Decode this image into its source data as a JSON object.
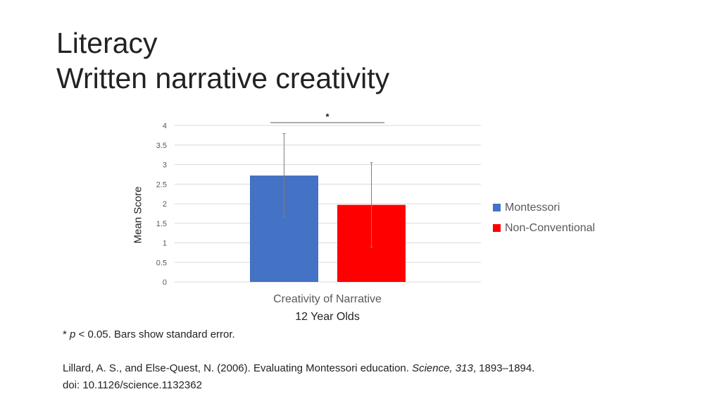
{
  "slide": {
    "title_line1": "Literacy",
    "title_line2": "Written narrative creativity",
    "footnote_star": "* ",
    "footnote_p": "p",
    "footnote_rest": " < 0.05. Bars show standard error.",
    "citation_part1": "Lillard, A. S., and Else-Quest, N. (2006). Evaluating Montessori education. ",
    "citation_journal": "Science, 313",
    "citation_part2": ", 1893–1894.",
    "citation_doi": "doi: 10.1126/science.1132362"
  },
  "chart_data": {
    "type": "bar",
    "categories": [
      "Creativity of Narrative"
    ],
    "subtitle": "12 Year Olds",
    "ylabel": "Mean Score",
    "xlabel": "",
    "ylim": [
      0,
      4
    ],
    "yticks": [
      "0",
      "0.5",
      "1",
      "1.5",
      "2",
      "2.5",
      "3",
      "3.5",
      "4"
    ],
    "grid": true,
    "legend_position": "right",
    "significance_marker": "*",
    "series": [
      {
        "name": "Montessori",
        "values": [
          2.72
        ],
        "error": [
          1.07
        ],
        "color": "#4472C4"
      },
      {
        "name": "Non-Conventional",
        "values": [
          1.97
        ],
        "error": [
          1.08
        ],
        "color": "#FF0000"
      }
    ]
  }
}
